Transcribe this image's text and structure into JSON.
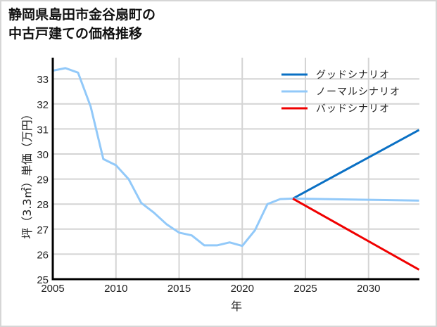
{
  "title": {
    "line1": "静岡県島田市金谷扇町の",
    "line2": "中古戸建ての価格推移"
  },
  "chart_data": {
    "type": "line",
    "title": "静岡県島田市金谷扇町の中古戸建ての価格推移",
    "xlabel": "年",
    "ylabel": "坪（3.3㎡）単価（万円）",
    "xlim": [
      2005,
      2034
    ],
    "ylim": [
      25,
      33.7
    ],
    "x_ticks": [
      2005,
      2010,
      2015,
      2020,
      2025,
      2030
    ],
    "y_ticks": [
      25,
      26,
      27,
      28,
      29,
      30,
      31,
      32,
      33
    ],
    "grid": true,
    "legend_position": "upper right",
    "series": [
      {
        "name": "グッドシナリオ",
        "color": "#0a70c4",
        "x": [
          2024,
          2034
        ],
        "values": [
          28.22,
          30.96
        ]
      },
      {
        "name": "ノーマルシナリオ",
        "color": "#92c9f9",
        "x": [
          2005,
          2006,
          2007,
          2008,
          2009,
          2010,
          2011,
          2012,
          2013,
          2014,
          2015,
          2016,
          2017,
          2018,
          2019,
          2020,
          2021,
          2022,
          2023,
          2024,
          2034
        ],
        "values": [
          33.33,
          33.43,
          33.25,
          31.9,
          29.8,
          29.55,
          29.0,
          28.05,
          27.66,
          27.2,
          26.86,
          26.75,
          26.35,
          26.35,
          26.47,
          26.33,
          26.95,
          28.0,
          28.2,
          28.22,
          28.14
        ]
      },
      {
        "name": "バッドシナリオ",
        "color": "#f00000",
        "x": [
          2024,
          2034
        ],
        "values": [
          28.22,
          25.38
        ]
      }
    ]
  }
}
